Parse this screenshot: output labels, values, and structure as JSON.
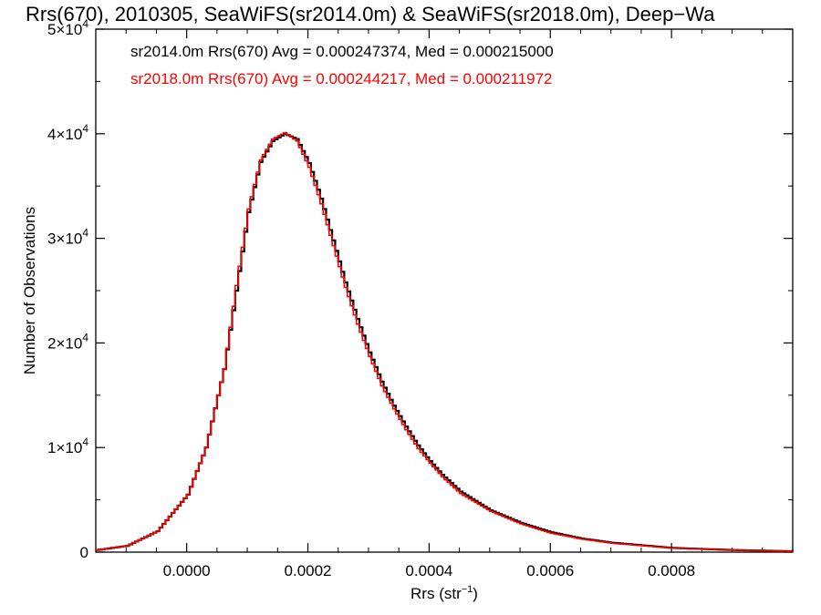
{
  "chart_data": {
    "type": "line",
    "title": "Rrs(670), 2010305, SeaWiFS(sr2014.0m) & SeaWiFS(sr2018.0m), Deep−Wa",
    "xlabel": "Rrs (str",
    "xlabel_sup": "−1",
    "xlabel_close": ")",
    "ylabel": "Number of Observations",
    "xlim": [
      -0.00015,
      0.001
    ],
    "ylim": [
      0,
      50000
    ],
    "x_ticks": [
      {
        "value": 0.0,
        "label": "0.0000"
      },
      {
        "value": 0.0002,
        "label": "0.0002"
      },
      {
        "value": 0.0004,
        "label": "0.0004"
      },
      {
        "value": 0.0006,
        "label": "0.0006"
      },
      {
        "value": 0.0008,
        "label": "0.0008"
      }
    ],
    "y_ticks": [
      {
        "value": 0,
        "mantissa": "0",
        "exp": ""
      },
      {
        "value": 10000,
        "mantissa": "1×10",
        "exp": "4"
      },
      {
        "value": 20000,
        "mantissa": "2×10",
        "exp": "4"
      },
      {
        "value": 30000,
        "mantissa": "3×10",
        "exp": "4"
      },
      {
        "value": 40000,
        "mantissa": "4×10",
        "exp": "4"
      },
      {
        "value": 50000,
        "mantissa": "5×10",
        "exp": "4"
      }
    ],
    "grid": false,
    "legend_position": "top-left",
    "series": [
      {
        "name": "sr2014.0m Rrs(670) Avg = 0.000247374, Med = 0.000215000",
        "color": "#000000",
        "x": [
          -0.00015,
          -0.0001,
          -5e-05,
          0.0,
          3e-05,
          6e-05,
          8e-05,
          0.0001,
          0.00012,
          0.00014,
          0.00016,
          0.00018,
          0.0002,
          0.00022,
          0.00024,
          0.00026,
          0.00028,
          0.0003,
          0.00032,
          0.00034,
          0.00036,
          0.00038,
          0.0004,
          0.00042,
          0.00045,
          0.0005,
          0.00055,
          0.0006,
          0.00065,
          0.0007,
          0.0008,
          0.0009,
          0.001
        ],
        "y": [
          200,
          600,
          2000,
          5500,
          10000,
          17500,
          25000,
          32500,
          37300,
          39300,
          40000,
          39500,
          37200,
          33800,
          29800,
          25800,
          22300,
          19100,
          16300,
          14000,
          12000,
          10200,
          8700,
          7400,
          5800,
          4000,
          2800,
          1900,
          1300,
          900,
          400,
          200,
          80
        ]
      },
      {
        "name": "sr2018.0m Rrs(670) Avg = 0.000244217, Med = 0.000211972",
        "color": "#ff0000",
        "x": [
          -0.00015,
          -0.0001,
          -5e-05,
          0.0,
          3e-05,
          6e-05,
          8e-05,
          0.0001,
          0.00012,
          0.00014,
          0.00016,
          0.00018,
          0.0002,
          0.00022,
          0.00024,
          0.00026,
          0.00028,
          0.0003,
          0.00032,
          0.00034,
          0.00036,
          0.00038,
          0.0004,
          0.00042,
          0.00045,
          0.0005,
          0.00055,
          0.0006,
          0.00065,
          0.0007,
          0.0008,
          0.0009,
          0.001
        ],
        "y": [
          200,
          600,
          2000,
          5500,
          10000,
          17500,
          25500,
          32800,
          37500,
          39500,
          40100,
          39300,
          36800,
          33300,
          29300,
          25300,
          21800,
          18700,
          15900,
          13700,
          11700,
          9900,
          8500,
          7200,
          5600,
          3900,
          2700,
          1800,
          1250,
          850,
          380,
          190,
          70
        ]
      }
    ]
  }
}
